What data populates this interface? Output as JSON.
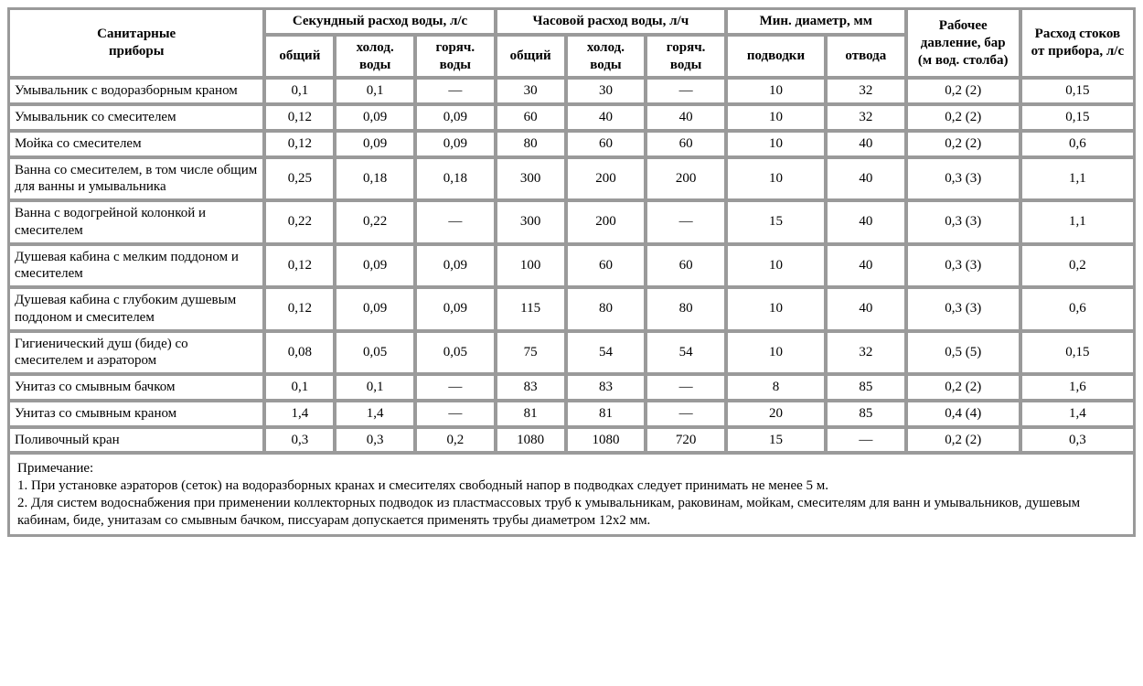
{
  "table": {
    "headers": {
      "devices": "Санитарные\nприборы",
      "sec_flow": "Секундный расход воды, л/с",
      "hour_flow": "Часовой расход воды, л/ч",
      "min_dia": "Мин. диаметр, мм",
      "pressure": "Рабочее давление, бар (м вод. столба)",
      "drain": "Расход стоков от прибора, л/с",
      "sub": {
        "total": "общий",
        "cold": "холод. воды",
        "hot": "горяч. воды",
        "inlet": "подводки",
        "outlet": "отвода"
      }
    },
    "rows": [
      {
        "name": "Умывальник с водоразборным краном",
        "c": [
          "0,1",
          "0,1",
          "—",
          "30",
          "30",
          "—",
          "10",
          "32",
          "0,2 (2)",
          "0,15"
        ]
      },
      {
        "name": "Умывальник со смесителем",
        "c": [
          "0,12",
          "0,09",
          "0,09",
          "60",
          "40",
          "40",
          "10",
          "32",
          "0,2 (2)",
          "0,15"
        ]
      },
      {
        "name": "Мойка со смесителем",
        "c": [
          "0,12",
          "0,09",
          "0,09",
          "80",
          "60",
          "60",
          "10",
          "40",
          "0,2 (2)",
          "0,6"
        ]
      },
      {
        "name": "Ванна со смесителем, в том числе общим для ванны и умывальника",
        "c": [
          "0,25",
          "0,18",
          "0,18",
          "300",
          "200",
          "200",
          "10",
          "40",
          "0,3 (3)",
          "1,1"
        ]
      },
      {
        "name": "Ванна с водогрейной колонкой и смесителем",
        "c": [
          "0,22",
          "0,22",
          "—",
          "300",
          "200",
          "—",
          "15",
          "40",
          "0,3 (3)",
          "1,1"
        ]
      },
      {
        "name": "Душевая кабина с мелким поддоном и смесителем",
        "c": [
          "0,12",
          "0,09",
          "0,09",
          "100",
          "60",
          "60",
          "10",
          "40",
          "0,3 (3)",
          "0,2"
        ]
      },
      {
        "name": "Душевая кабина с глубоким душевым\nподдоном и смесителем",
        "c": [
          "0,12",
          "0,09",
          "0,09",
          "115",
          "80",
          "80",
          "10",
          "40",
          "0,3 (3)",
          "0,6"
        ]
      },
      {
        "name": "Гигиенический душ (биде) со смесителем и аэратором",
        "c": [
          "0,08",
          "0,05",
          "0,05",
          "75",
          "54",
          "54",
          "10",
          "32",
          "0,5 (5)",
          "0,15"
        ]
      },
      {
        "name": "Унитаз со смывным бачком",
        "c": [
          "0,1",
          "0,1",
          "—",
          "83",
          "83",
          "—",
          "8",
          "85",
          "0,2 (2)",
          "1,6"
        ]
      },
      {
        "name": "Унитаз со смывным краном",
        "c": [
          "1,4",
          "1,4",
          "—",
          "81",
          "81",
          "—",
          "20",
          "85",
          "0,4 (4)",
          "1,4"
        ]
      },
      {
        "name": "Поливочный кран",
        "c": [
          "0,3",
          "0,3",
          "0,2",
          "1080",
          "1080",
          "720",
          "15",
          "—",
          "0,2 (2)",
          "0,3"
        ]
      }
    ],
    "note": "Примечание:\n1. При установке аэраторов (сеток) на водоразборных кранах и смесителях свободный напор в подводках следует принимать не менее 5 м.\n2. Для систем водоснабжения при применении коллекторных подводок из пластмассовых труб к умывальникам, раковинам, мойкам, смесителям для ванн и умывальников, душевым кабинам, биде, унитазам со смывным бачком, писсуарам допускается применять трубы диаметром 12х2 мм."
  }
}
